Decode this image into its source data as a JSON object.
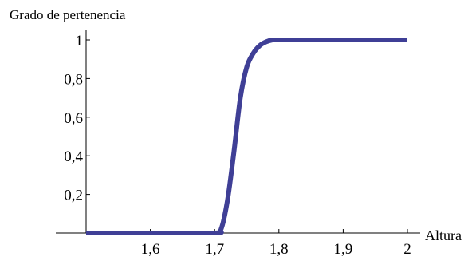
{
  "chart_data": {
    "type": "line",
    "title": "",
    "ylabel": "Grado de pertenencia",
    "xlabel": "Altura",
    "xlim": [
      1.5,
      2.0
    ],
    "ylim": [
      0,
      1
    ],
    "x_ticks": [
      "1,6",
      "1,7",
      "1,8",
      "1,9",
      "2"
    ],
    "x_tick_values": [
      1.6,
      1.7,
      1.8,
      1.9,
      2.0
    ],
    "y_ticks": [
      "0,2",
      "0,4",
      "0,6",
      "0,8",
      "1"
    ],
    "y_tick_values": [
      0.2,
      0.4,
      0.6,
      0.8,
      1.0
    ],
    "grid": false,
    "series": [
      {
        "color": "#3f3f96",
        "x": [
          1.5,
          1.6,
          1.7,
          1.71,
          1.72,
          1.73,
          1.74,
          1.75,
          1.76,
          1.77,
          1.78,
          1.79,
          1.8,
          1.85,
          1.9,
          2.0
        ],
        "y": [
          0,
          0,
          0,
          0.02,
          0.17,
          0.42,
          0.7,
          0.86,
          0.93,
          0.97,
          0.99,
          1.0,
          1.0,
          1.0,
          1.0,
          1.0
        ]
      }
    ]
  }
}
